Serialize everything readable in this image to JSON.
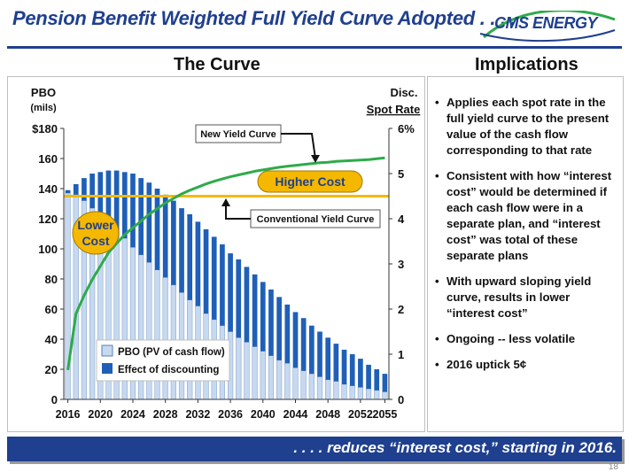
{
  "header": {
    "title": "Pension Benefit Weighted Full Yield Curve Adopted . . . .",
    "logo_text": "CMS ENERGY"
  },
  "sections": {
    "left_title": "The Curve",
    "right_title": "Implications"
  },
  "chart_data": {
    "type": "bar",
    "title": "The Curve",
    "left_axis": {
      "label_line1": "PBO",
      "label_line2": "(mils)",
      "ylim": [
        0,
        180
      ],
      "ticks": [
        "$180",
        "160",
        "140",
        "120",
        "100",
        "80",
        "60",
        "40",
        "20",
        "0"
      ]
    },
    "right_axis": {
      "label_line1": "Disc.",
      "label_line2": "Spot Rate",
      "ylim": [
        0,
        6
      ],
      "ticks": [
        "6%",
        "5",
        "4",
        "3",
        "2",
        "1",
        "0"
      ]
    },
    "x_tick_labels": [
      "2016",
      "2020",
      "2024",
      "2028",
      "2032",
      "2036",
      "2040",
      "2044",
      "2048",
      "2052",
      "2055"
    ],
    "years": [
      2016,
      2017,
      2018,
      2019,
      2020,
      2021,
      2022,
      2023,
      2024,
      2025,
      2026,
      2027,
      2028,
      2029,
      2030,
      2031,
      2032,
      2033,
      2034,
      2035,
      2036,
      2037,
      2038,
      2039,
      2040,
      2041,
      2042,
      2043,
      2044,
      2045,
      2046,
      2047,
      2048,
      2049,
      2050,
      2051,
      2052,
      2053,
      2054,
      2055
    ],
    "series": [
      {
        "name": "PBO (PV of cash flow)",
        "color": "#c6d9f1",
        "values": [
          137,
          136,
          132,
          127,
          122,
          117,
          112,
          107,
          101,
          96,
          91,
          86,
          81,
          76,
          71,
          66,
          62,
          57,
          53,
          49,
          45,
          41,
          38,
          35,
          32,
          29,
          26,
          24,
          21,
          19,
          17,
          15,
          13,
          12,
          10,
          9,
          8,
          7,
          6,
          5
        ]
      },
      {
        "name": "Effect of discounting",
        "color": "#1f5fb8",
        "values": [
          2,
          7,
          15,
          23,
          29,
          35,
          40,
          44,
          49,
          51,
          53,
          54,
          55,
          56,
          56,
          57,
          56,
          56,
          55,
          54,
          52,
          52,
          50,
          48,
          46,
          44,
          42,
          39,
          37,
          35,
          32,
          30,
          28,
          25,
          23,
          21,
          19,
          16,
          14,
          12
        ]
      }
    ],
    "lines": [
      {
        "name": "New Yield Curve",
        "color": "#2eab4a",
        "rates": [
          0.65,
          1.9,
          2.3,
          2.65,
          2.95,
          3.25,
          3.45,
          3.65,
          3.8,
          3.95,
          4.1,
          4.22,
          4.35,
          4.45,
          4.55,
          4.63,
          4.7,
          4.77,
          4.83,
          4.88,
          4.93,
          4.97,
          5.01,
          5.05,
          5.08,
          5.11,
          5.14,
          5.16,
          5.18,
          5.2,
          5.22,
          5.24,
          5.25,
          5.27,
          5.28,
          5.29,
          5.3,
          5.31,
          5.33,
          5.35
        ]
      },
      {
        "name": "Conventional Yield Curve",
        "color": "#f5b800",
        "rate": 4.5
      }
    ],
    "legend": [
      "PBO (PV of cash flow)",
      "Effect of discounting"
    ],
    "annotations": {
      "new_curve": "New Yield Curve",
      "conventional": "Conventional Yield Curve",
      "higher_cost": "Higher Cost",
      "lower_cost_line1": "Lower",
      "lower_cost_line2": "Cost"
    }
  },
  "implications": [
    "Applies each spot rate in the full yield curve to the present value of the cash flow corresponding to that rate",
    "Consistent with how “interest cost” would be determined if each cash flow were in a separate plan, and “interest cost” was total of these separate plans",
    "With upward sloping yield curve, results in lower “interest cost”",
    "Ongoing -- less volatile",
    "2016 uptick 5¢"
  ],
  "footer": {
    "text": ". . . . reduces “interest cost,” starting in 2016.",
    "page_number": "18"
  }
}
